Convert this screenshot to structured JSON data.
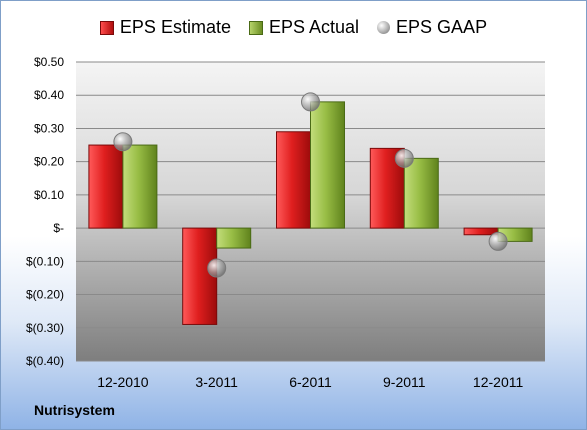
{
  "company": "Nutrisystem",
  "legend": {
    "estimate": "EPS Estimate",
    "actual": "EPS Actual",
    "gaap": "EPS GAAP"
  },
  "chart_data": {
    "type": "bar",
    "categories": [
      "12-2010",
      "3-2011",
      "6-2011",
      "9-2011",
      "12-2011"
    ],
    "series": [
      {
        "name": "EPS Estimate",
        "values": [
          0.25,
          -0.29,
          0.29,
          0.24,
          -0.02
        ],
        "color": "#c8181a"
      },
      {
        "name": "EPS Actual",
        "values": [
          0.25,
          -0.06,
          0.38,
          0.21,
          -0.04
        ],
        "color": "#8cb33a"
      },
      {
        "name": "EPS GAAP",
        "values": [
          0.26,
          -0.12,
          0.38,
          0.21,
          -0.04
        ],
        "color": "#a8a8a8",
        "marker": "sphere"
      }
    ],
    "ylim": [
      -0.4,
      0.5
    ],
    "yticks": [
      "$0.50",
      "$0.40",
      "$0.30",
      "$0.20",
      "$0.10",
      "$-",
      "$(0.10)",
      "$(0.20)",
      "$(0.30)",
      "$(0.40)"
    ],
    "ytick_values": [
      0.5,
      0.4,
      0.3,
      0.2,
      0.1,
      0.0,
      -0.1,
      -0.2,
      -0.3,
      -0.4
    ],
    "grid": true,
    "legend_position": "top"
  }
}
